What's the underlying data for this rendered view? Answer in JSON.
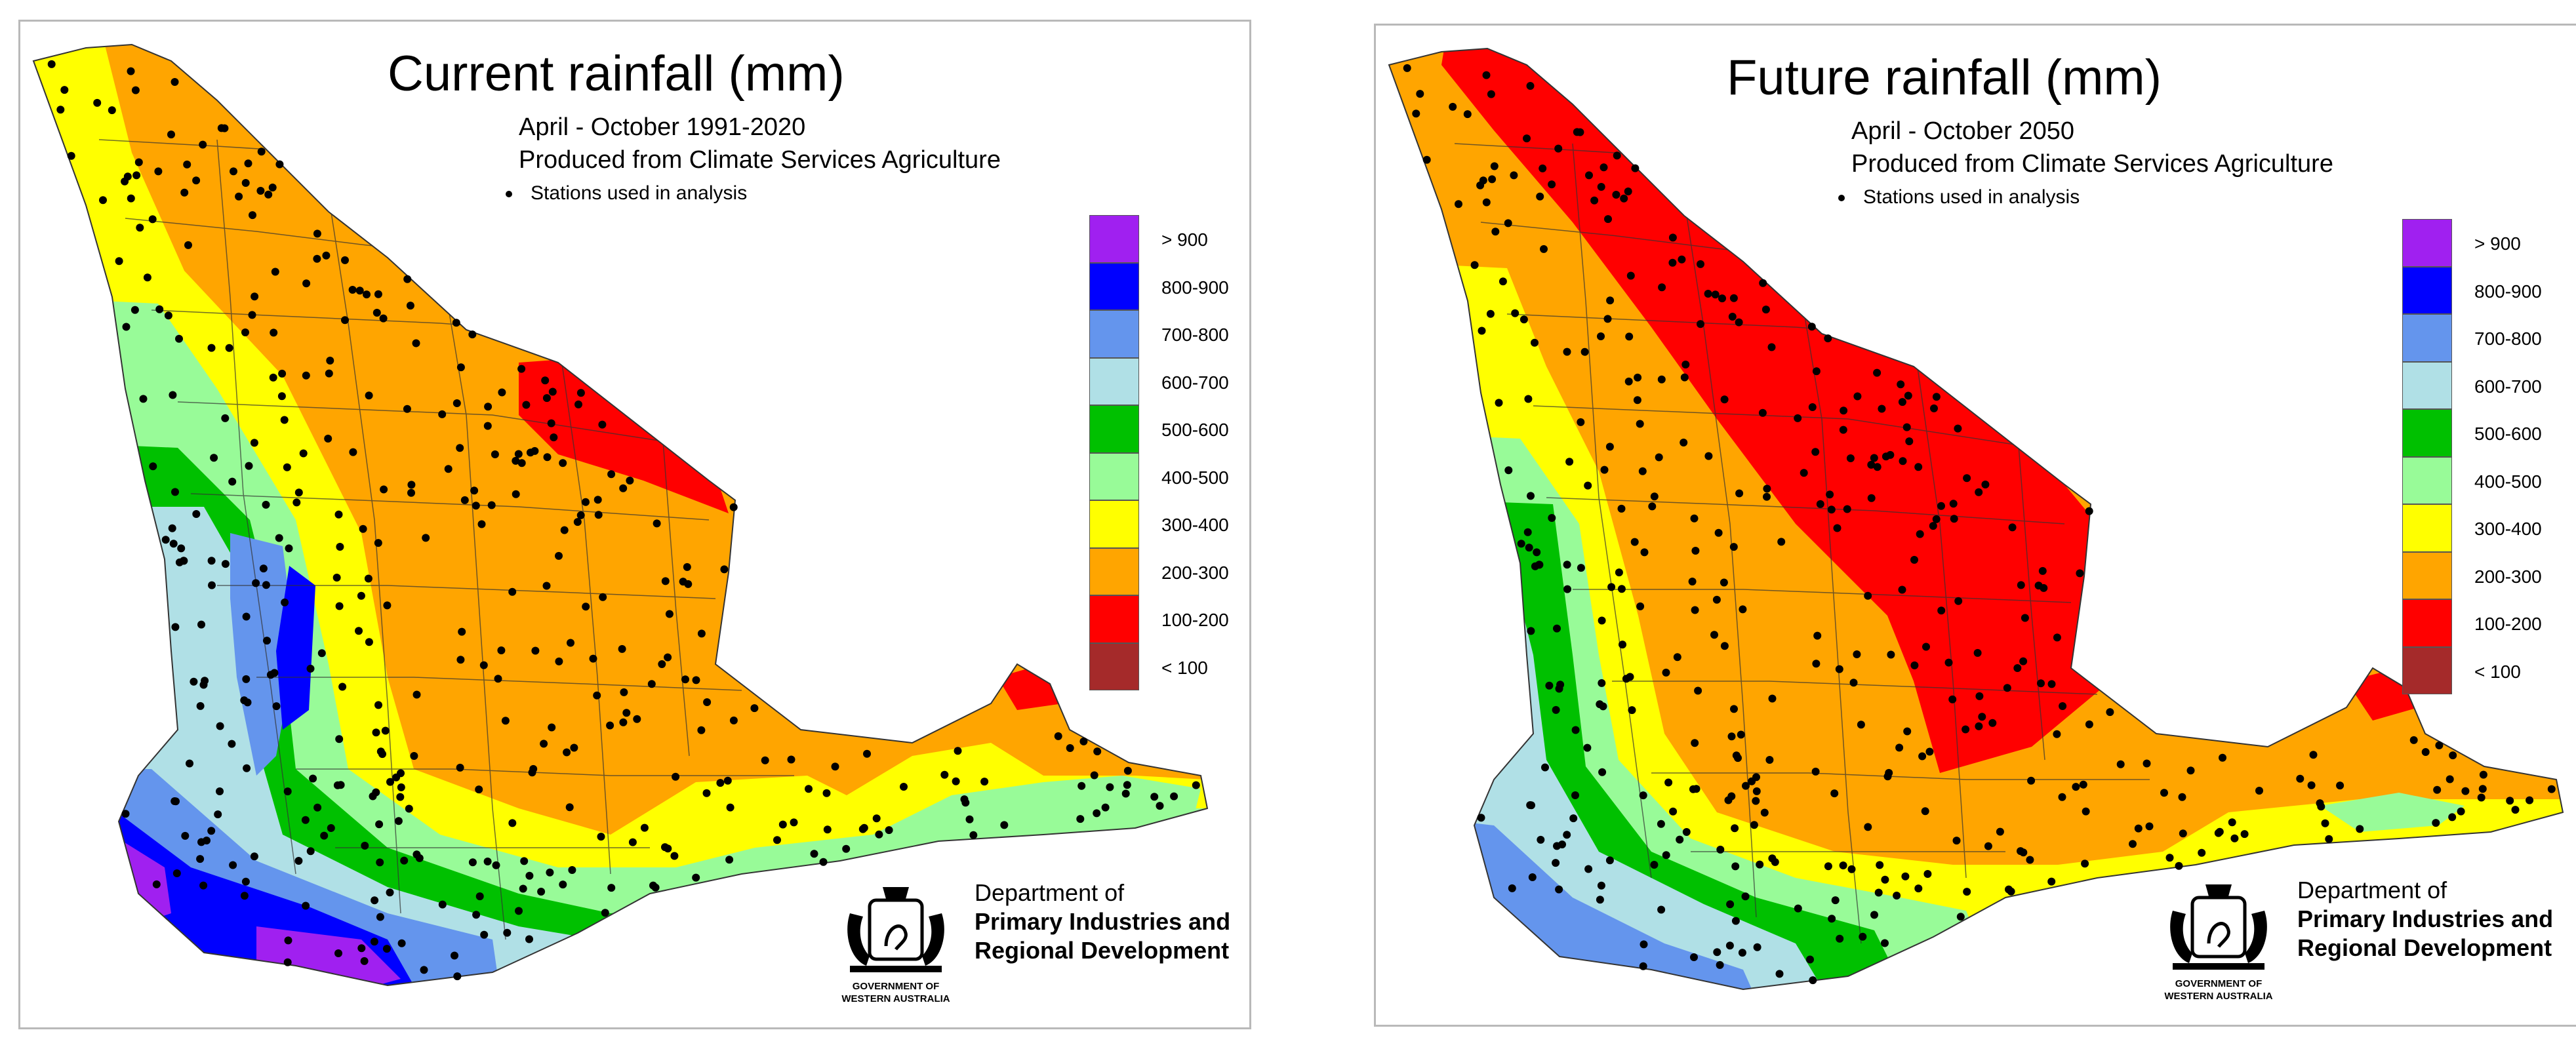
{
  "panels": [
    {
      "title": "Current rainfall (mm)",
      "subtitle_period": "April - October 1991-2020",
      "subtitle_source": "Produced from Climate Services Agriculture",
      "stations_note": "Stations used in analysis"
    },
    {
      "title": "Future rainfall (mm)",
      "subtitle_period": "April - October 2050",
      "subtitle_source": "Produced from Climate Services Agriculture",
      "stations_note": "Stations used in analysis"
    }
  ],
  "legend": [
    {
      "label": "> 900",
      "color": "#a020f0"
    },
    {
      "label": "800-900",
      "color": "#0000ff"
    },
    {
      "label": "700-800",
      "color": "#6495ed"
    },
    {
      "label": "600-700",
      "color": "#b0e0e6"
    },
    {
      "label": "500-600",
      "color": "#00c000"
    },
    {
      "label": "400-500",
      "color": "#98fb98"
    },
    {
      "label": "300-400",
      "color": "#ffff00"
    },
    {
      "label": "200-300",
      "color": "#ffa500"
    },
    {
      "label": "100-200",
      "color": "#ff0000"
    },
    {
      "label": "< 100",
      "color": "#a52a2a"
    }
  ],
  "department": {
    "line1": "Department of",
    "line2": "Primary Industries and",
    "line3": "Regional Development",
    "gov_line1": "GOVERNMENT OF",
    "gov_line2": "WESTERN AUSTRALIA"
  }
}
